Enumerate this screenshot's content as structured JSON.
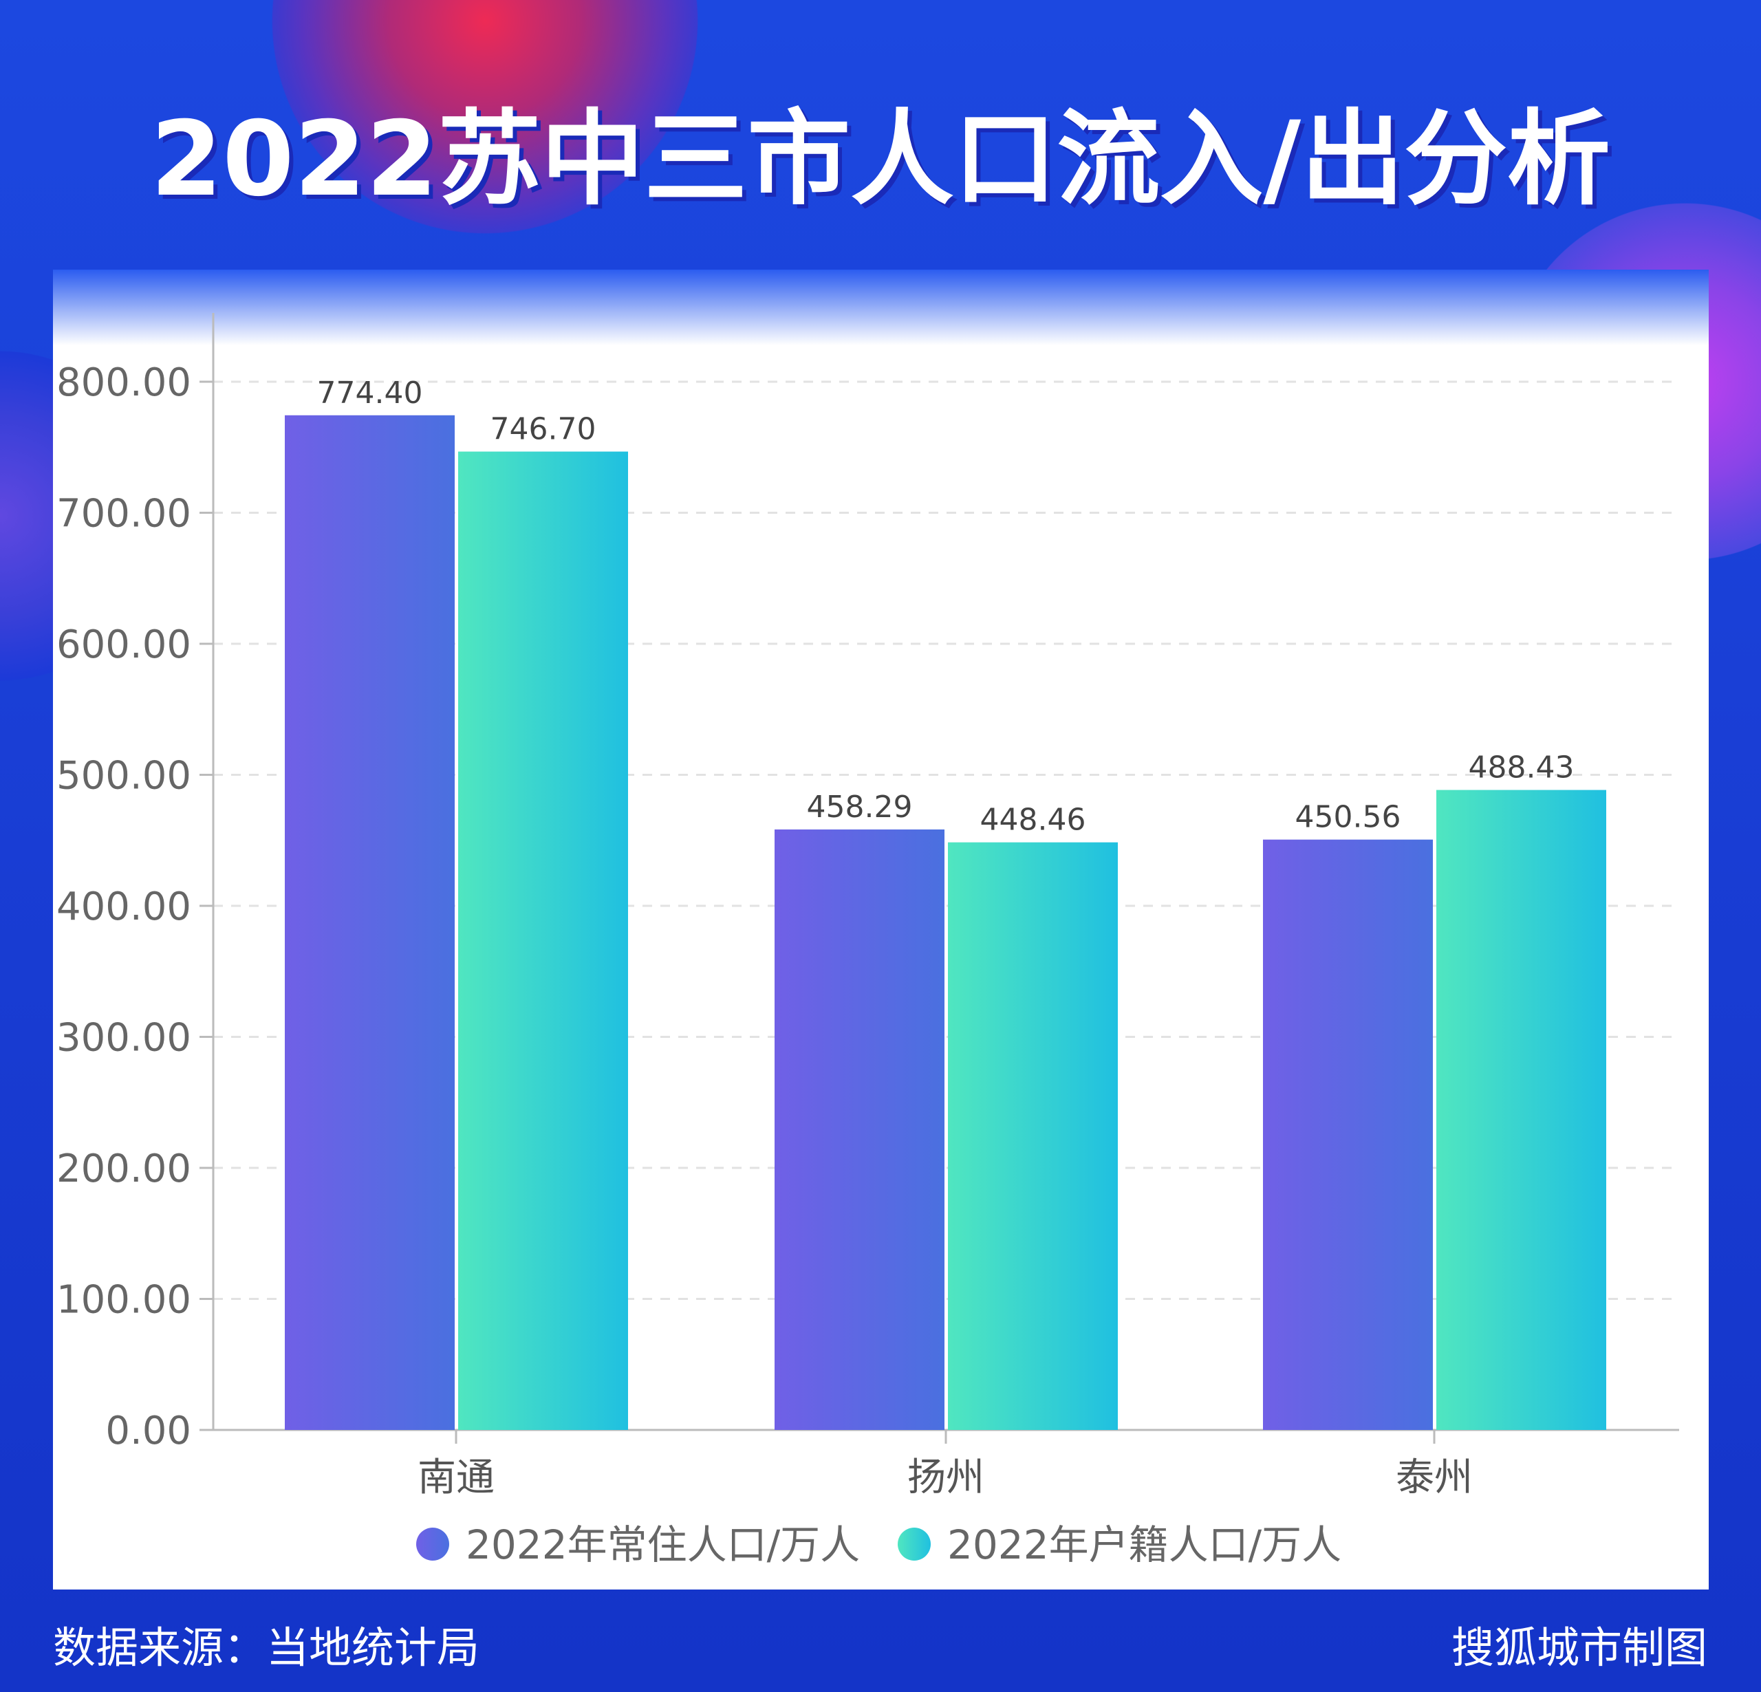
{
  "title": "2022苏中三市人口流入/出分析",
  "footer": {
    "source": "数据来源：当地统计局",
    "credit": "搜狐城市制图"
  },
  "colors": {
    "series1": [
      "#7060e6",
      "#4a70e0"
    ],
    "series2": [
      "#50e6c0",
      "#20c0e0"
    ],
    "background": "#1a3fd6"
  },
  "chart_data": {
    "type": "bar",
    "categories": [
      "南通",
      "扬州",
      "泰州"
    ],
    "series": [
      {
        "name": "2022年常住人口/万人",
        "values": [
          774.4,
          458.29,
          450.56
        ],
        "labels": [
          "774.40",
          "458.29",
          "450.56"
        ]
      },
      {
        "name": "2022年户籍人口/万人",
        "values": [
          746.7,
          448.46,
          488.43
        ],
        "labels": [
          "746.70",
          "448.46",
          "488.43"
        ]
      }
    ],
    "ylim": [
      0,
      800
    ],
    "yticks": [
      "0.00",
      "100.00",
      "200.00",
      "300.00",
      "400.00",
      "500.00",
      "600.00",
      "700.00",
      "800.00"
    ],
    "grid": true,
    "legend": "bottom"
  }
}
